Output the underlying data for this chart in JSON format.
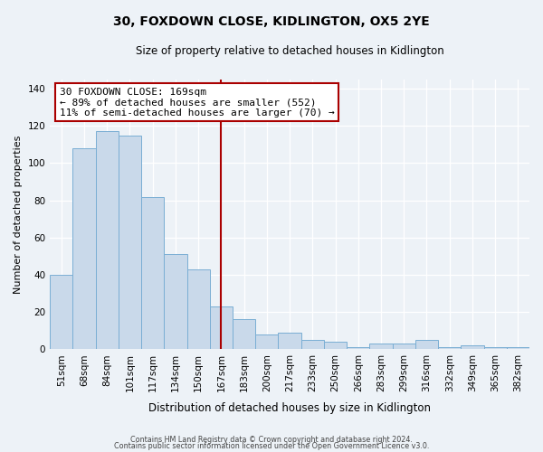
{
  "title": "30, FOXDOWN CLOSE, KIDLINGTON, OX5 2YE",
  "subtitle": "Size of property relative to detached houses in Kidlington",
  "xlabel": "Distribution of detached houses by size in Kidlington",
  "ylabel": "Number of detached properties",
  "categories": [
    "51sqm",
    "68sqm",
    "84sqm",
    "101sqm",
    "117sqm",
    "134sqm",
    "150sqm",
    "167sqm",
    "183sqm",
    "200sqm",
    "217sqm",
    "233sqm",
    "250sqm",
    "266sqm",
    "283sqm",
    "299sqm",
    "316sqm",
    "332sqm",
    "349sqm",
    "365sqm",
    "382sqm"
  ],
  "values": [
    40,
    108,
    117,
    115,
    82,
    51,
    43,
    23,
    16,
    8,
    9,
    5,
    4,
    1,
    3,
    3,
    5,
    1,
    2,
    1,
    1
  ],
  "bar_color": "#c9d9ea",
  "bar_edge_color": "#7aaed4",
  "vline_index": 7,
  "vline_color": "#aa0000",
  "annotation_title": "30 FOXDOWN CLOSE: 169sqm",
  "annotation_line1": "← 89% of detached houses are smaller (552)",
  "annotation_line2": "11% of semi-detached houses are larger (70) →",
  "annotation_box_color": "#ffffff",
  "annotation_box_edge": "#aa0000",
  "ylim": [
    0,
    145
  ],
  "yticks": [
    0,
    20,
    40,
    60,
    80,
    100,
    120,
    140
  ],
  "background_color": "#edf2f7",
  "footer1": "Contains HM Land Registry data © Crown copyright and database right 2024.",
  "footer2": "Contains public sector information licensed under the Open Government Licence v3.0."
}
